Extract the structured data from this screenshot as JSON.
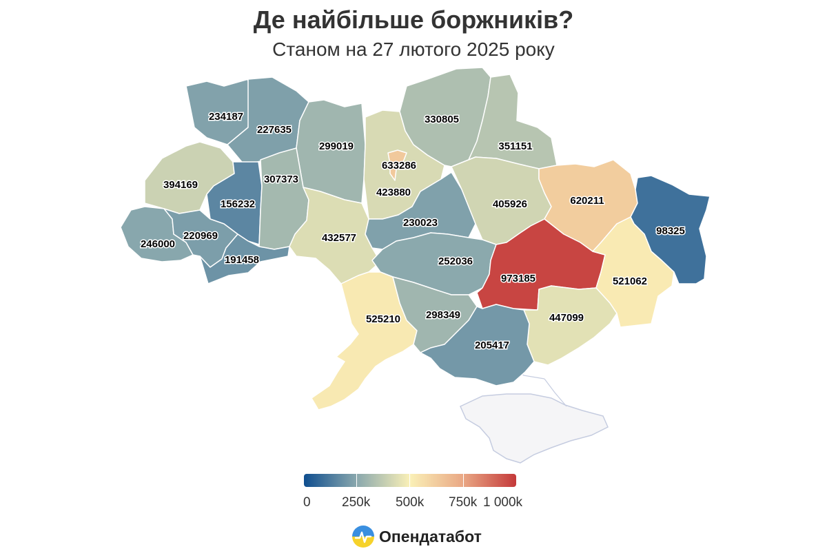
{
  "title": "Де найбільше боржників?",
  "subtitle": "Станом на 27 лютого 2025 року",
  "brand": {
    "name": "Опендатабот",
    "icon": "opendatabot-logo-icon"
  },
  "legend": {
    "ticks": [
      "0",
      "250k",
      "500k",
      "750k",
      "1 000k"
    ],
    "range": [
      0,
      1000000
    ],
    "colors": [
      "#0f4e8f",
      "#8aa8ad",
      "#faf0b7",
      "#e9a784",
      "#c4393a"
    ]
  },
  "colors": {
    "no_data": "#f5f5f7",
    "border": "#ffffff"
  },
  "regions": [
    {
      "id": "volyn",
      "value": 234187
    },
    {
      "id": "rivne",
      "value": 227635
    },
    {
      "id": "zhytomyr",
      "value": 299019
    },
    {
      "id": "kyiv-oblast",
      "value": 423880
    },
    {
      "id": "kyiv-city",
      "value": 633286
    },
    {
      "id": "chernihiv",
      "value": 330805
    },
    {
      "id": "sumy",
      "value": 351151
    },
    {
      "id": "lviv",
      "value": 394169
    },
    {
      "id": "ternopil",
      "value": 156232
    },
    {
      "id": "khmelnytskyi",
      "value": 307373
    },
    {
      "id": "zakarpattia",
      "value": 246000
    },
    {
      "id": "ivano-frankivsk",
      "value": 220969
    },
    {
      "id": "chernivtsi",
      "value": 191458
    },
    {
      "id": "vinnytsia",
      "value": 432577
    },
    {
      "id": "cherkasy",
      "value": 230023
    },
    {
      "id": "poltava",
      "value": 405926
    },
    {
      "id": "kharkiv",
      "value": 620211
    },
    {
      "id": "luhansk",
      "value": 98325
    },
    {
      "id": "kirovohrad",
      "value": 252036
    },
    {
      "id": "dnipropetrovsk",
      "value": 973185
    },
    {
      "id": "donetsk",
      "value": 521062
    },
    {
      "id": "odesa",
      "value": 525210
    },
    {
      "id": "mykolaiv",
      "value": 298349
    },
    {
      "id": "zaporizhzhia",
      "value": 447099
    },
    {
      "id": "kherson",
      "value": 205417
    }
  ]
}
